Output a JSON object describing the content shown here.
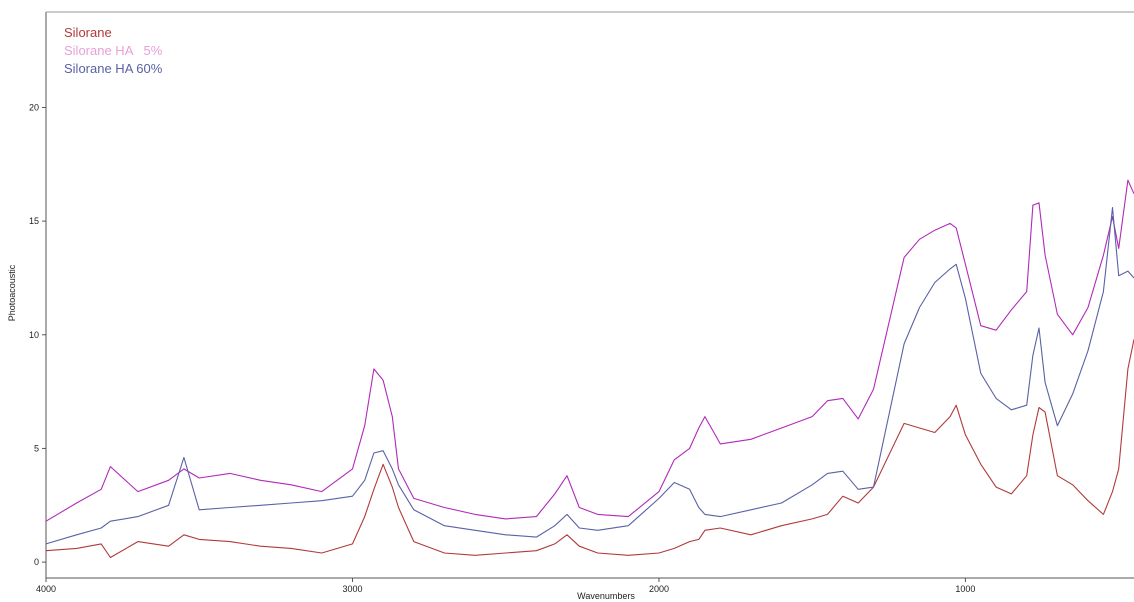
{
  "chart_data": {
    "type": "line",
    "xlabel": "Wavenumbers",
    "ylabel": "Photoacoustic",
    "xlim": [
      4000,
      450
    ],
    "ylim": [
      -0.7,
      24.2
    ],
    "x_reversed": true,
    "grid": false,
    "legend_position": "top-left",
    "x_ticks": [
      4000,
      3000,
      2000,
      1000
    ],
    "x_tick_labels": [
      "4000",
      "3000",
      "2000",
      "1000"
    ],
    "y_ticks": [
      0,
      5,
      10,
      15,
      20
    ],
    "y_tick_labels": [
      "0",
      "5",
      "10",
      "15",
      "20"
    ],
    "x": [
      4000,
      3900,
      3820,
      3790,
      3700,
      3600,
      3550,
      3500,
      3400,
      3300,
      3200,
      3100,
      3000,
      2960,
      2930,
      2900,
      2870,
      2850,
      2800,
      2700,
      2600,
      2500,
      2400,
      2340,
      2300,
      2260,
      2200,
      2100,
      2000,
      1950,
      1900,
      1870,
      1850,
      1800,
      1700,
      1600,
      1500,
      1450,
      1400,
      1350,
      1300,
      1200,
      1150,
      1100,
      1050,
      1030,
      1000,
      950,
      900,
      850,
      800,
      780,
      760,
      740,
      700,
      650,
      600,
      550,
      520,
      500,
      470,
      450
    ],
    "series": [
      {
        "name": "Silorane",
        "color": "#b03a3a",
        "values": [
          0.5,
          0.6,
          0.8,
          0.2,
          0.9,
          0.7,
          1.2,
          1.0,
          0.9,
          0.7,
          0.6,
          0.4,
          0.8,
          2.0,
          3.2,
          4.3,
          3.3,
          2.4,
          0.9,
          0.4,
          0.3,
          0.4,
          0.5,
          0.8,
          1.2,
          0.7,
          0.4,
          0.3,
          0.4,
          0.6,
          0.9,
          1.0,
          1.4,
          1.5,
          1.2,
          1.6,
          1.9,
          2.1,
          2.9,
          2.6,
          3.3,
          6.1,
          5.9,
          5.7,
          6.4,
          6.9,
          5.6,
          4.3,
          3.3,
          3.0,
          3.8,
          5.6,
          6.8,
          6.6,
          3.8,
          3.4,
          2.7,
          2.1,
          3.1,
          4.1,
          8.5,
          9.8
        ]
      },
      {
        "name": "Silorane HA   5%",
        "color": "#b02ab8",
        "values": [
          1.8,
          2.6,
          3.2,
          4.2,
          3.1,
          3.6,
          4.1,
          3.7,
          3.9,
          3.6,
          3.4,
          3.1,
          4.1,
          6.0,
          8.5,
          8.0,
          6.4,
          4.1,
          2.8,
          2.4,
          2.1,
          1.9,
          2.0,
          3.0,
          3.8,
          2.4,
          2.1,
          2.0,
          3.1,
          4.5,
          5.0,
          5.9,
          6.4,
          5.2,
          5.4,
          5.9,
          6.4,
          7.1,
          7.2,
          6.3,
          7.6,
          13.4,
          14.2,
          14.6,
          14.9,
          14.7,
          13.1,
          10.4,
          10.2,
          11.1,
          11.9,
          15.7,
          15.8,
          13.5,
          10.9,
          10.0,
          11.2,
          13.5,
          15.2,
          13.8,
          16.8,
          16.2
        ]
      },
      {
        "name": "Silorane HA 60%",
        "color": "#5a61a6",
        "values": [
          0.8,
          1.2,
          1.5,
          1.8,
          2.0,
          2.5,
          4.6,
          2.3,
          2.4,
          2.5,
          2.6,
          2.7,
          2.9,
          3.6,
          4.8,
          4.9,
          4.1,
          3.4,
          2.3,
          1.6,
          1.4,
          1.2,
          1.1,
          1.6,
          2.1,
          1.5,
          1.4,
          1.6,
          2.8,
          3.5,
          3.2,
          2.4,
          2.1,
          2.0,
          2.3,
          2.6,
          3.4,
          3.9,
          4.0,
          3.2,
          3.3,
          9.6,
          11.2,
          12.3,
          12.9,
          13.1,
          11.6,
          8.3,
          7.2,
          6.7,
          6.9,
          9.1,
          10.3,
          7.9,
          6.0,
          7.4,
          9.3,
          11.9,
          15.6,
          12.6,
          12.8,
          12.5
        ]
      }
    ]
  }
}
